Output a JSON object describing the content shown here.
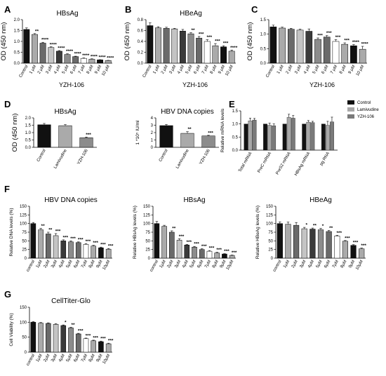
{
  "colors": {
    "black": "#111111",
    "gray1": "#3a3a3a",
    "gray2": "#6a6a6a",
    "gray3": "#8c8c8c",
    "gray4": "#aaaaaa",
    "gray5": "#c4c4c4",
    "gray6": "#e2e2e2",
    "white": "#ffffff",
    "control": "#111111",
    "lamivudine": "#a8a8a8",
    "yzh106": "#7a7a7a"
  },
  "panels": [
    {
      "label": "A"
    },
    {
      "label": "B"
    },
    {
      "label": "C"
    },
    {
      "label": "D"
    },
    {
      "label": "E"
    },
    {
      "label": "F"
    },
    {
      "label": "G"
    }
  ],
  "chart_data": [
    {
      "id": "A",
      "type": "bar",
      "title": "HBsAg",
      "ylabel": "OD (450 nm)",
      "xlabel": "YZH-106",
      "ylim": [
        0,
        2.0
      ],
      "yticks": [
        "0.0",
        "0.5",
        "1.0",
        "1.5",
        "2.0"
      ],
      "categories": [
        "Control",
        "1 μM",
        "2 μM",
        "3 μM",
        "4 μM",
        "5 μM",
        "6 μM",
        "7 μM",
        "8 μM",
        "9 μM",
        "10 μM"
      ],
      "values": [
        1.55,
        1.32,
        0.92,
        0.72,
        0.55,
        0.4,
        0.3,
        0.22,
        0.18,
        0.15,
        0.12
      ],
      "errors": [
        0.07,
        0.04,
        0.04,
        0.03,
        0.03,
        0.03,
        0.02,
        0.02,
        0.02,
        0.01,
        0.01
      ],
      "sig": [
        "",
        "**",
        "****",
        "****",
        "****",
        "****",
        "****",
        "****",
        "****",
        "****",
        "****"
      ]
    },
    {
      "id": "B",
      "type": "bar",
      "title": "HBeAg",
      "ylabel": "OD (450 nm)",
      "xlabel": "YZH-106",
      "ylim": [
        0,
        0.8
      ],
      "yticks": [
        "0.0",
        "0.2",
        "0.4",
        "0.6",
        "0.8"
      ],
      "categories": [
        "Control",
        "1 μM",
        "2 μM",
        "3 μM",
        "4 μM",
        "5 μM",
        "6 μM",
        "7 μM",
        "8 μM",
        "9 μM",
        "10 μM"
      ],
      "values": [
        0.69,
        0.65,
        0.64,
        0.63,
        0.59,
        0.54,
        0.46,
        0.4,
        0.32,
        0.3,
        0.22
      ],
      "errors": [
        0.05,
        0.02,
        0.02,
        0.01,
        0.03,
        0.02,
        0.03,
        0.03,
        0.04,
        0.02,
        0.02
      ],
      "sig": [
        "",
        "",
        "",
        "",
        "",
        "**",
        "***",
        "***",
        "***",
        "***",
        "****"
      ]
    },
    {
      "id": "C",
      "type": "bar",
      "title": "",
      "ylabel": "OD (450 nm)",
      "xlabel": "YZH-106",
      "ylim": [
        0,
        1.5
      ],
      "yticks": [
        "0.0",
        "0.5",
        "1.0",
        "1.5"
      ],
      "categories": [
        "Control",
        "1 μM",
        "2 μM",
        "3 μM",
        "4 μM",
        "5 μM",
        "6 μM",
        "7 μM",
        "8 μM",
        "9 μM",
        "10 μM"
      ],
      "values": [
        1.25,
        1.21,
        1.17,
        1.14,
        1.1,
        0.82,
        0.9,
        0.75,
        0.65,
        0.6,
        0.48
      ],
      "errors": [
        0.06,
        0.03,
        0.03,
        0.03,
        0.08,
        0.05,
        0.05,
        0.06,
        0.05,
        0.04,
        0.1
      ],
      "sig": [
        "",
        "",
        "",
        "",
        "",
        "***",
        "***",
        "***",
        "***",
        "****",
        "****"
      ]
    },
    {
      "id": "D1",
      "type": "bar",
      "title": "HBsAg",
      "ylabel": "OD (450 nm)",
      "xlabel": "",
      "ylim": [
        0,
        2.0
      ],
      "yticks": [
        "0.0",
        "0.5",
        "1.0",
        "1.5",
        "2.0"
      ],
      "categories": [
        "Control",
        "Lamivudine",
        "YZH-106"
      ],
      "values": [
        1.53,
        1.47,
        0.65
      ],
      "errors": [
        0.09,
        0.07,
        0.05
      ],
      "sig": [
        "",
        "",
        "***"
      ]
    },
    {
      "id": "D2",
      "type": "bar",
      "title": "HBV DNA copies",
      "ylabel": "1 *10⁵ IU/ml",
      "xlabel": "",
      "ylim": [
        0,
        4
      ],
      "yticks": [
        "0",
        "1",
        "2",
        "3",
        "4"
      ],
      "categories": [
        "Control",
        "Lamivudine",
        "YZH-106"
      ],
      "values": [
        2.95,
        1.9,
        1.55
      ],
      "errors": [
        0.14,
        0.22,
        0.08
      ],
      "sig": [
        "",
        "**",
        "***"
      ]
    },
    {
      "id": "E",
      "type": "bar",
      "title": "",
      "ylabel": "Relative mRNA levels",
      "xlabel": "",
      "ylim": [
        0,
        1.5
      ],
      "yticks": [
        "0.0",
        "0.5",
        "1.0",
        "1.5"
      ],
      "categories": [
        "Total mRNA",
        "PreC mRNA",
        "PreS2 mRNA",
        "HBsAg mRNA",
        "pg RNA"
      ],
      "series": [
        {
          "name": "Control",
          "values": [
            1.0,
            1.0,
            1.0,
            1.0,
            1.0
          ],
          "errors": [
            0,
            0,
            0,
            0,
            0
          ]
        },
        {
          "name": "Lamivudine",
          "values": [
            1.12,
            0.95,
            1.25,
            1.07,
            0.95
          ],
          "errors": [
            0.1,
            0.08,
            0.12,
            0.06,
            0.15
          ]
        },
        {
          "name": "YZH-106",
          "values": [
            1.15,
            0.93,
            1.22,
            1.05,
            1.08
          ],
          "errors": [
            0.06,
            0.07,
            0.1,
            0.05,
            0.18
          ]
        }
      ],
      "legend": "top-right"
    },
    {
      "id": "F1",
      "type": "bar",
      "title": "HBV DNA copies",
      "ylabel": "Relative DNA levels (%)",
      "xlabel": "",
      "ylim": [
        0,
        150
      ],
      "yticks": [
        "0",
        "25",
        "50",
        "75",
        "100",
        "125",
        "150"
      ],
      "categories": [
        "control",
        "1μM",
        "2μM",
        "3μM",
        "4μM",
        "5μM",
        "6μM",
        "7μM",
        "8μM",
        "9μM",
        "10μM"
      ],
      "values": [
        100,
        82,
        70,
        65,
        50,
        47,
        45,
        40,
        35,
        30,
        26
      ],
      "errors": [
        3,
        4,
        5,
        6,
        3,
        3,
        2,
        2,
        2,
        2,
        2
      ],
      "sig": [
        "",
        "**",
        "**",
        "***",
        "***",
        "***",
        "***",
        "***",
        "***",
        "***",
        "***"
      ]
    },
    {
      "id": "F2",
      "type": "bar",
      "title": "HBsAg",
      "ylabel": "Relative HBsAg levels (%)",
      "xlabel": "",
      "ylim": [
        0,
        150
      ],
      "yticks": [
        "0",
        "25",
        "50",
        "75",
        "100",
        "125",
        "150"
      ],
      "categories": [
        "control",
        "1μM",
        "2μM",
        "3μM",
        "4μM",
        "5μM",
        "6μM",
        "7μM",
        "8μM",
        "9μM",
        "10μM"
      ],
      "values": [
        100,
        92,
        75,
        52,
        38,
        32,
        25,
        20,
        15,
        12,
        8
      ],
      "errors": [
        6,
        3,
        4,
        4,
        2,
        2,
        2,
        2,
        2,
        1,
        1
      ],
      "sig": [
        "",
        "",
        "**",
        "***",
        "***",
        "***",
        "***",
        "***",
        "***",
        "***",
        "***"
      ]
    },
    {
      "id": "F3",
      "type": "bar",
      "title": "HBeAg",
      "ylabel": "Relative HBeAg levels (%)",
      "xlabel": "",
      "ylim": [
        0,
        150
      ],
      "yticks": [
        "0",
        "25",
        "50",
        "75",
        "100",
        "125",
        "150"
      ],
      "categories": [
        "control",
        "1μM",
        "2μM",
        "3μM",
        "4μM",
        "5μM",
        "6μM",
        "7μM",
        "8μM",
        "9μM",
        "10μM"
      ],
      "values": [
        100,
        98,
        95,
        85,
        84,
        82,
        77,
        64,
        49,
        37,
        27
      ],
      "errors": [
        5,
        6,
        8,
        4,
        3,
        4,
        3,
        2,
        2,
        2,
        2
      ],
      "sig": [
        "",
        "",
        "",
        "*",
        "**",
        "*",
        "**",
        "***",
        "***",
        "***",
        "***"
      ]
    },
    {
      "id": "G",
      "type": "bar",
      "title": "CellTiter-Glo",
      "ylabel": "Cell Viability (%)",
      "xlabel": "",
      "ylim": [
        0,
        150
      ],
      "yticks": [
        "0",
        "50",
        "100",
        "150"
      ],
      "categories": [
        "control",
        "1μM",
        "2μM",
        "3μM",
        "4μM",
        "5μM",
        "6μM",
        "7μM",
        "8μM",
        "9μM",
        "10μM"
      ],
      "values": [
        100,
        97,
        96,
        93,
        89,
        81,
        61,
        45,
        38,
        35,
        28
      ],
      "errors": [
        2,
        2,
        2,
        2,
        2,
        2,
        2,
        2,
        2,
        2,
        2
      ],
      "sig": [
        "",
        "",
        "",
        "",
        "*",
        "**",
        "***",
        "***",
        "***",
        "***",
        "***"
      ]
    }
  ]
}
